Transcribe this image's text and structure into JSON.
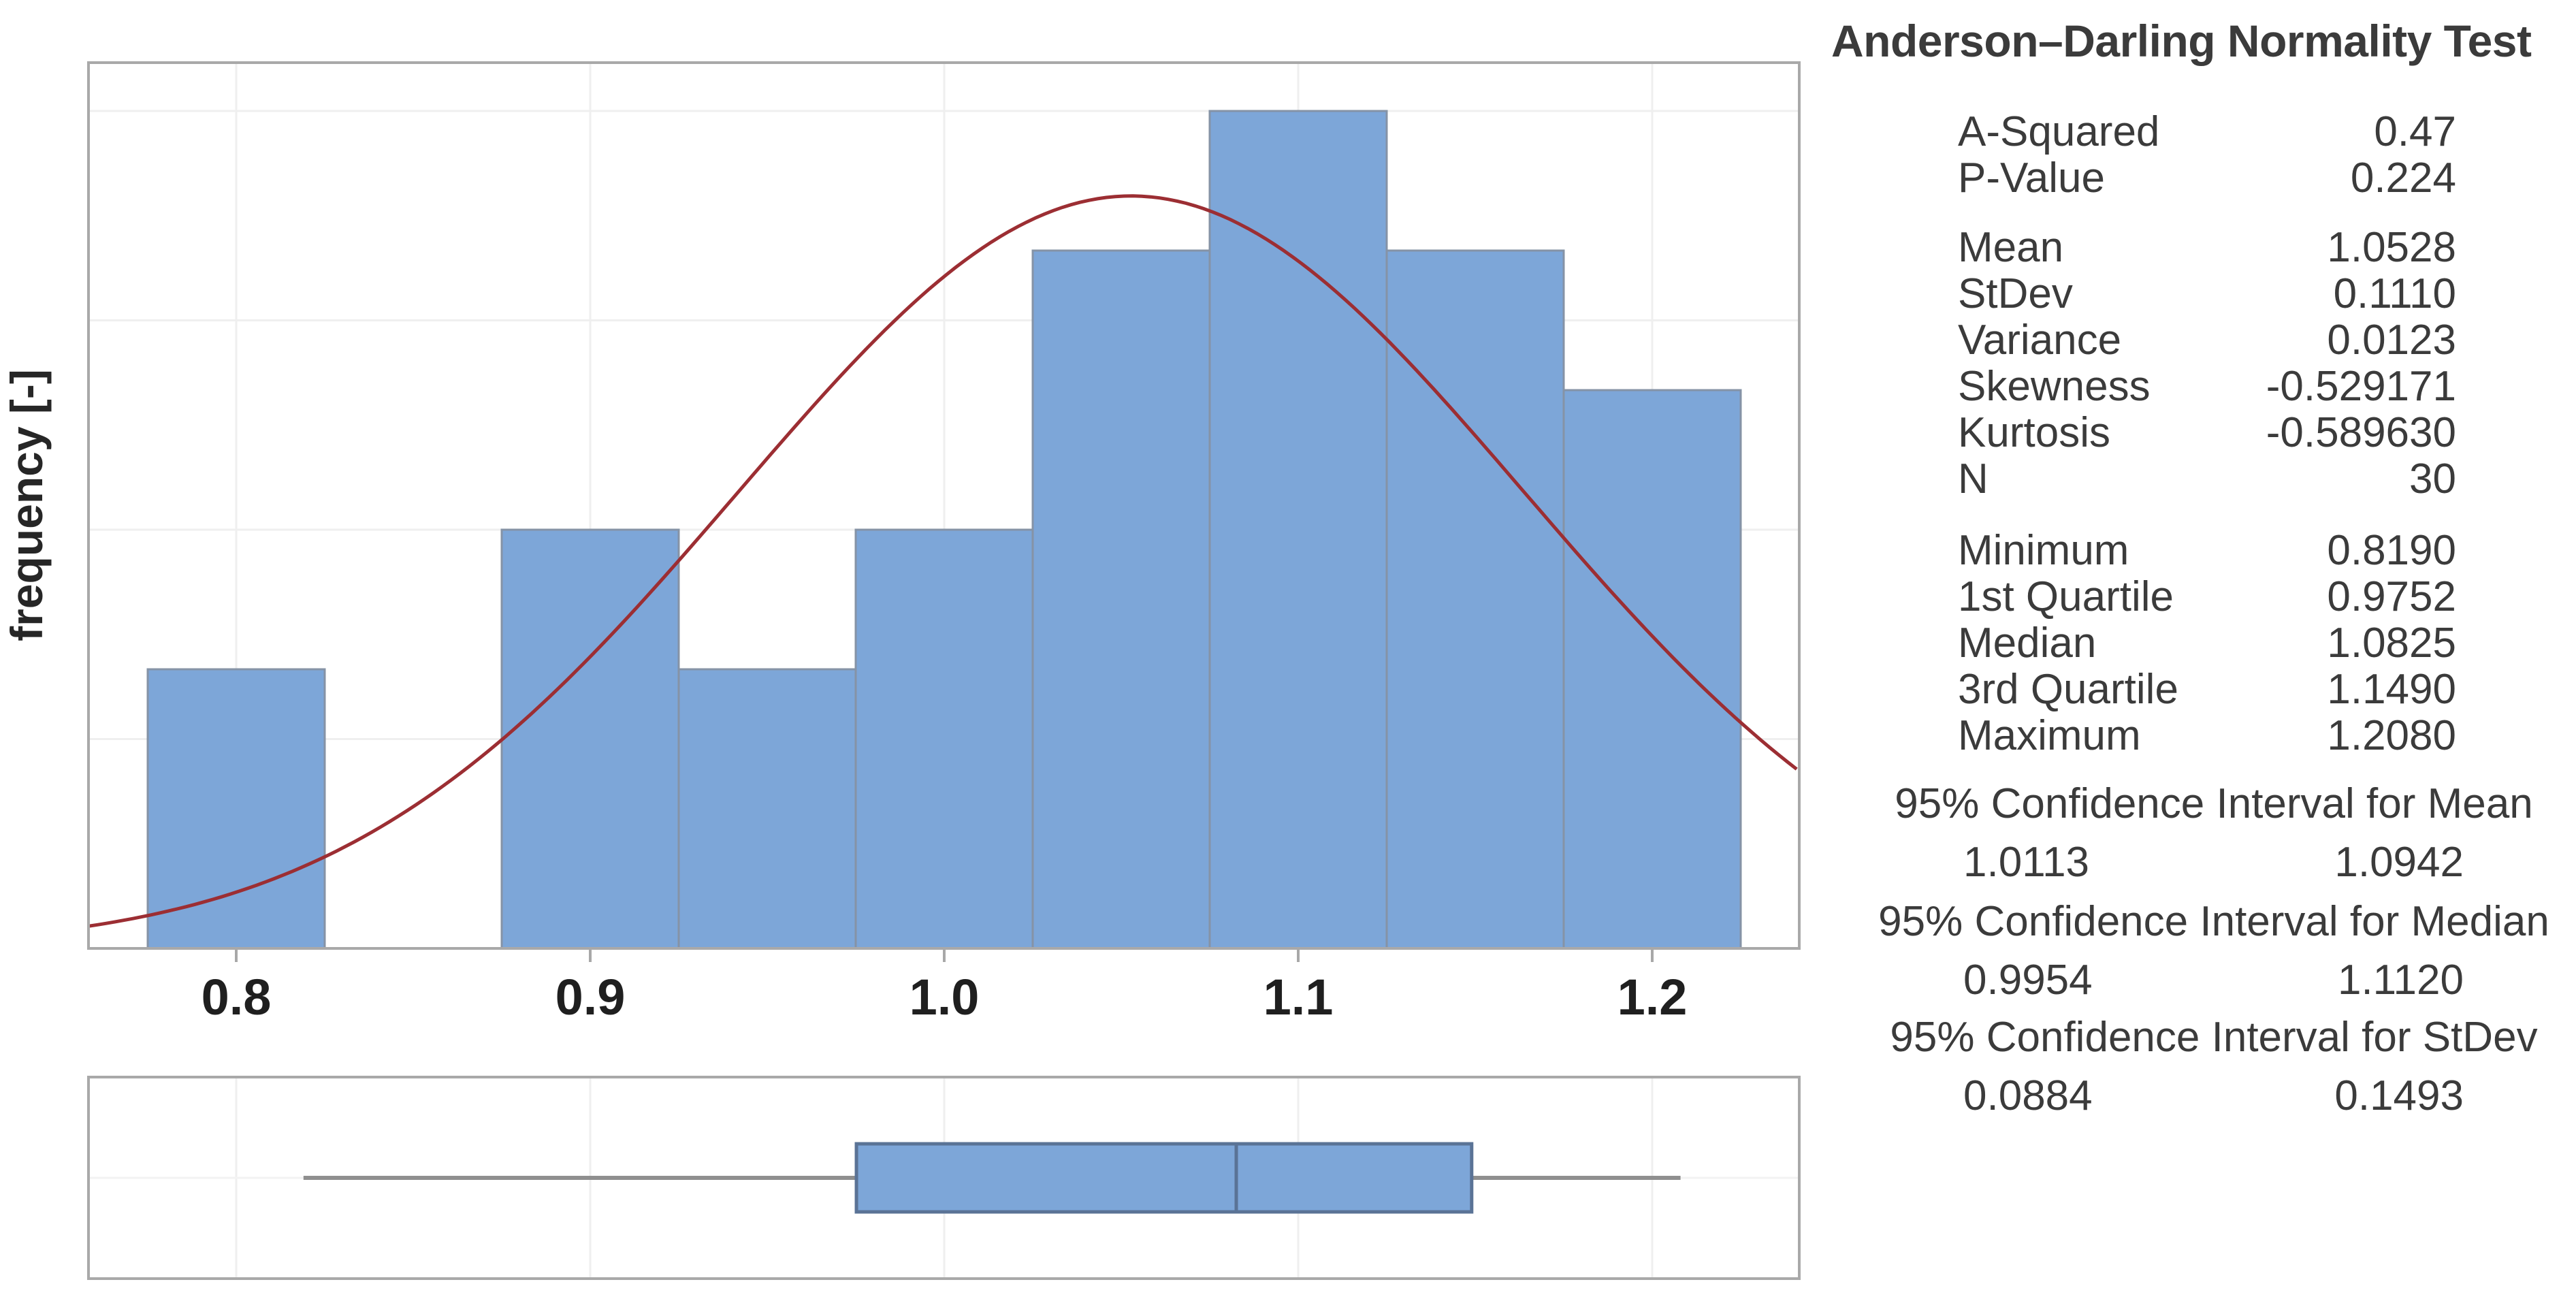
{
  "colors": {
    "bar_fill": "#7DA6D8",
    "bar_stroke": "#8593A6",
    "curve": "#9C2E33",
    "box_fill": "#7DA6D8",
    "box_stroke": "#5A7396",
    "whisker": "#8F8F8F",
    "panel_border": "#A9A9A9",
    "gridline": "#EFEFEF",
    "center_gridline": "#F3F3F3",
    "tick": "#A8A8A8",
    "tick_label": "#1F1F1F",
    "axis_label": "#262626",
    "text": "#3B3B3B"
  },
  "chart_data": [
    {
      "type": "histogram",
      "title": "",
      "xlabel": "",
      "ylabel": "frequency [-]",
      "bin_start": 0.775,
      "bin_width": 0.05,
      "bin_counts": [
        2,
        0,
        3,
        2,
        3,
        5,
        6,
        5,
        4
      ],
      "n_total": 30,
      "x_ticks": [
        0.8,
        0.9,
        1.0,
        1.1,
        1.2
      ],
      "x_tick_labels": [
        "0.8",
        "0.9",
        "1.0",
        "1.1",
        "1.2"
      ],
      "xlim": [
        0.7583,
        1.2415
      ],
      "ylim_counts": [
        0,
        6.35
      ],
      "y_gridlines_counts": [
        1.5,
        3,
        4.5,
        6
      ],
      "grid": true,
      "legend": "none",
      "normal_curve": {
        "mean": 1.0528,
        "stdev": 0.111,
        "scale_n": 30,
        "scale_binwidth": 0.05
      }
    },
    {
      "type": "boxplot",
      "orientation": "horizontal",
      "min": 0.819,
      "q1": 0.9752,
      "median": 1.0825,
      "q3": 1.149,
      "max": 1.208,
      "xlim": [
        0.7583,
        1.2415
      ],
      "x_gridlines": [
        0.8,
        0.9,
        1.0,
        1.1,
        1.2
      ],
      "grid": true
    }
  ],
  "stats_panel": {
    "title": "Anderson–Darling Normality Test",
    "groups": [
      {
        "rows": [
          {
            "label": "A-Squared",
            "value": "0.47"
          },
          {
            "label": "P-Value",
            "value": "0.224"
          }
        ]
      },
      {
        "rows": [
          {
            "label": "Mean",
            "value": "1.0528"
          },
          {
            "label": "StDev",
            "value": "0.1110"
          },
          {
            "label": "Variance",
            "value": "0.0123"
          },
          {
            "label": "Skewness",
            "value": "-0.529171"
          },
          {
            "label": "Kurtosis",
            "value": "-0.589630"
          },
          {
            "label": "N",
            "value": "30"
          }
        ]
      },
      {
        "rows": [
          {
            "label": "Minimum",
            "value": "0.8190"
          },
          {
            "label": "1st Quartile",
            "value": "0.9752"
          },
          {
            "label": "Median",
            "value": "1.0825"
          },
          {
            "label": "3rd Quartile",
            "value": "1.1490"
          },
          {
            "label": "Maximum",
            "value": "1.2080"
          }
        ]
      }
    ],
    "intervals": [
      {
        "header": "95% Confidence Interval for Mean",
        "low": "1.0113",
        "high": "1.0942"
      },
      {
        "header": "95% Confidence Interval for Median",
        "low": "0.9954",
        "high": "1.1120"
      },
      {
        "header": "95% Confidence Interval for StDev",
        "low": "0.0884",
        "high": "0.1493"
      }
    ]
  }
}
